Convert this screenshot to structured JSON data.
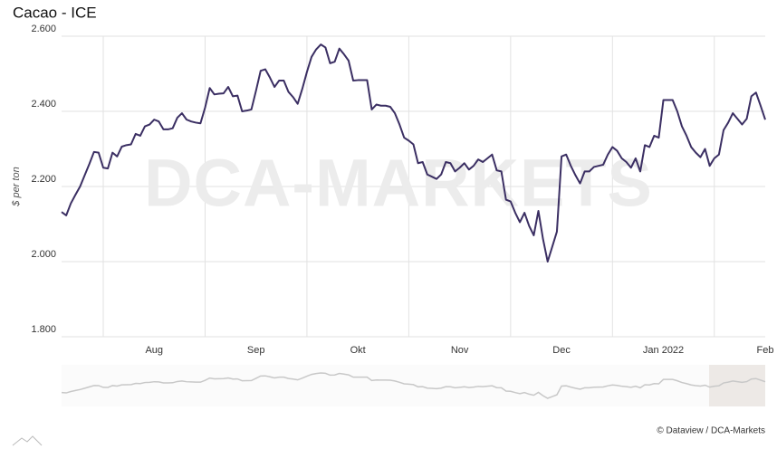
{
  "chart_data": {
    "type": "line",
    "title": "Cacao - ICE",
    "y_label": "$ per ton",
    "watermark": "DCA-MARKETS",
    "credit": "© Dataview / DCA-Markets",
    "categories": [
      null,
      null,
      null,
      null,
      null,
      null,
      null,
      null,
      null,
      null,
      null,
      null,
      null,
      null,
      null,
      null,
      null,
      null,
      null,
      null,
      "Aug",
      null,
      null,
      null,
      null,
      null,
      null,
      null,
      null,
      null,
      null,
      null,
      null,
      null,
      null,
      null,
      null,
      null,
      null,
      null,
      null,
      null,
      "Sep",
      null,
      null,
      null,
      null,
      null,
      null,
      null,
      null,
      null,
      null,
      null,
      null,
      null,
      null,
      null,
      null,
      null,
      null,
      null,
      null,
      null,
      "Okt",
      null,
      null,
      null,
      null,
      null,
      null,
      null,
      null,
      null,
      null,
      null,
      null,
      null,
      null,
      null,
      null,
      null,
      null,
      null,
      null,
      null,
      "Nov",
      null,
      null,
      null,
      null,
      null,
      null,
      null,
      null,
      null,
      null,
      null,
      null,
      null,
      null,
      null,
      null,
      null,
      null,
      null,
      null,
      null,
      "Dec",
      null,
      null,
      null,
      null,
      null,
      null,
      null,
      null,
      null,
      null,
      null,
      null,
      null,
      null,
      null,
      null,
      null,
      null,
      null,
      null,
      null,
      "Jan 2022",
      null,
      null,
      null,
      null,
      null,
      null,
      null,
      null,
      null,
      null,
      null,
      null,
      null,
      null,
      null,
      null,
      null,
      null,
      null,
      null,
      null,
      "Feb"
    ],
    "series": [
      {
        "name": "Cacao",
        "color": "#3b2f63",
        "values": [
          2132,
          2123,
          2155,
          2178,
          2200,
          2230,
          2260,
          2292,
          2290,
          2250,
          2248,
          2290,
          2280,
          2306,
          2310,
          2312,
          2340,
          2335,
          2360,
          2365,
          2378,
          2373,
          2352,
          2352,
          2355,
          2383,
          2395,
          2378,
          2373,
          2370,
          2368,
          2410,
          2462,
          2445,
          2447,
          2448,
          2465,
          2440,
          2442,
          2400,
          2402,
          2405,
          2455,
          2508,
          2512,
          2490,
          2465,
          2482,
          2482,
          2452,
          2438,
          2420,
          2460,
          2505,
          2545,
          2565,
          2578,
          2570,
          2528,
          2532,
          2567,
          2552,
          2535,
          2482,
          2483,
          2483,
          2483,
          2405,
          2418,
          2415,
          2415,
          2412,
          2395,
          2365,
          2330,
          2322,
          2312,
          2262,
          2265,
          2232,
          2226,
          2220,
          2232,
          2265,
          2262,
          2240,
          2250,
          2262,
          2245,
          2255,
          2272,
          2265,
          2275,
          2285,
          2243,
          2240,
          2165,
          2160,
          2130,
          2105,
          2130,
          2095,
          2070,
          2135,
          2060,
          2000,
          2040,
          2080,
          2280,
          2285,
          2255,
          2230,
          2208,
          2240,
          2240,
          2252,
          2255,
          2258,
          2285,
          2305,
          2295,
          2275,
          2265,
          2250,
          2275,
          2240,
          2310,
          2305,
          2335,
          2330,
          2430,
          2430,
          2430,
          2400,
          2360,
          2335,
          2305,
          2290,
          2278,
          2300,
          2255,
          2275,
          2285,
          2350,
          2370,
          2395,
          2380,
          2365,
          2380,
          2440,
          2450,
          2415,
          2378
        ]
      }
    ],
    "ylim": [
      1800,
      2600
    ],
    "yticks": [
      {
        "value": 1800,
        "label": "1.800"
      },
      {
        "value": 2000,
        "label": "2.000"
      },
      {
        "value": 2200,
        "label": "2.200"
      },
      {
        "value": 2400,
        "label": "2.400"
      },
      {
        "value": 2600,
        "label": "2.600"
      }
    ],
    "grid": true
  }
}
